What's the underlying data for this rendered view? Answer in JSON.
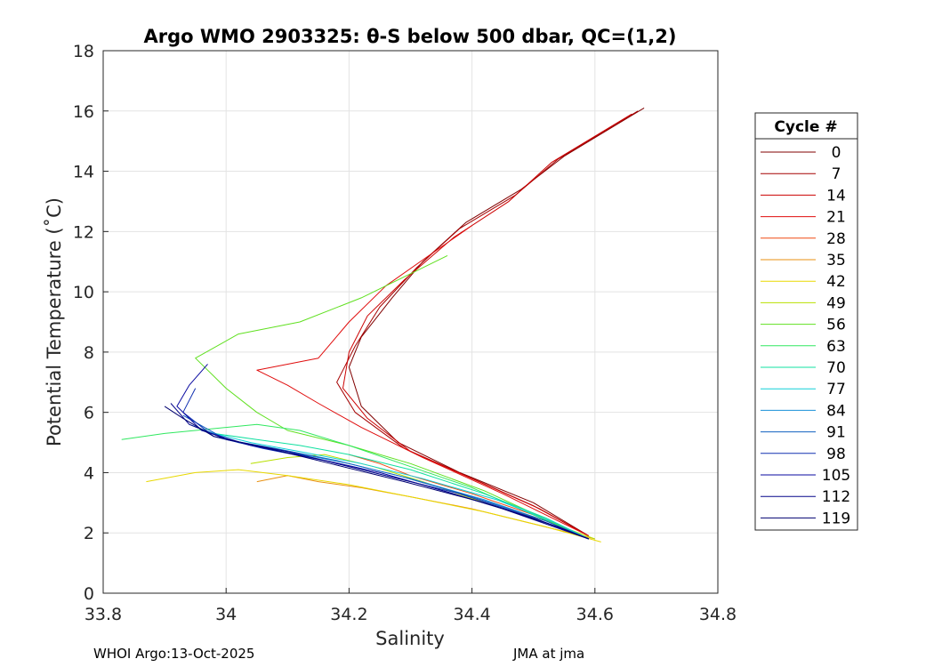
{
  "chart_data": {
    "type": "line",
    "title": "Argo WMO 2903325: θ-S below 500 dbar,  QC=(1,2)",
    "xlabel": "Salinity",
    "ylabel": "Potential Temperature (˚C)",
    "xlim": [
      33.8,
      34.8
    ],
    "ylim": [
      0,
      18
    ],
    "xticks": [
      "33.8",
      "34",
      "34.2",
      "34.4",
      "34.6",
      "34.8"
    ],
    "yticks": [
      "0",
      "2",
      "4",
      "6",
      "8",
      "10",
      "12",
      "14",
      "16",
      "18"
    ],
    "grid": true,
    "legend_title": "Cycle #",
    "legend_position": "right",
    "series": [
      {
        "name": "0",
        "color": "#800000",
        "points": [
          [
            34.68,
            16.1
          ],
          [
            34.55,
            14.5
          ],
          [
            34.48,
            13.4
          ],
          [
            34.39,
            12.3
          ],
          [
            34.32,
            11.0
          ],
          [
            34.27,
            9.8
          ],
          [
            34.22,
            8.5
          ],
          [
            34.2,
            7.5
          ],
          [
            34.22,
            6.2
          ],
          [
            34.28,
            5.0
          ],
          [
            34.38,
            4.0
          ],
          [
            34.5,
            3.0
          ],
          [
            34.59,
            1.9
          ]
        ]
      },
      {
        "name": "7",
        "color": "#a50000",
        "points": [
          [
            34.67,
            16.0
          ],
          [
            34.54,
            14.4
          ],
          [
            34.47,
            13.2
          ],
          [
            34.38,
            12.1
          ],
          [
            34.31,
            10.8
          ],
          [
            34.25,
            9.5
          ],
          [
            34.21,
            8.2
          ],
          [
            34.18,
            7.0
          ],
          [
            34.21,
            6.0
          ],
          [
            34.29,
            4.8
          ],
          [
            34.39,
            3.9
          ],
          [
            34.5,
            2.9
          ],
          [
            34.59,
            1.9
          ]
        ]
      },
      {
        "name": "14",
        "color": "#cc0000",
        "points": [
          [
            34.66,
            15.9
          ],
          [
            34.53,
            14.3
          ],
          [
            34.46,
            13.0
          ],
          [
            34.37,
            11.8
          ],
          [
            34.29,
            10.4
          ],
          [
            34.23,
            9.2
          ],
          [
            34.2,
            8.0
          ],
          [
            34.19,
            6.8
          ],
          [
            34.23,
            5.8
          ],
          [
            34.3,
            4.7
          ],
          [
            34.4,
            3.8
          ],
          [
            34.51,
            2.8
          ],
          [
            34.59,
            1.9
          ]
        ]
      },
      {
        "name": "21",
        "color": "#e00d0d",
        "points": [
          [
            34.4,
            12.2
          ],
          [
            34.33,
            11.2
          ],
          [
            34.26,
            10.2
          ],
          [
            34.2,
            9.0
          ],
          [
            34.15,
            7.8
          ],
          [
            34.05,
            7.4
          ],
          [
            34.1,
            6.9
          ],
          [
            34.15,
            6.3
          ],
          [
            34.22,
            5.5
          ],
          [
            34.32,
            4.5
          ],
          [
            34.45,
            3.3
          ],
          [
            34.59,
            1.9
          ]
        ]
      },
      {
        "name": "28",
        "color": "#f04a12",
        "points": [
          [
            34.2,
            4.6
          ],
          [
            34.25,
            4.3
          ],
          [
            34.3,
            3.9
          ],
          [
            34.4,
            3.3
          ],
          [
            34.5,
            2.6
          ],
          [
            34.58,
            1.9
          ]
        ]
      },
      {
        "name": "35",
        "color": "#e89010",
        "points": [
          [
            34.05,
            3.7
          ],
          [
            34.1,
            3.9
          ],
          [
            34.15,
            3.7
          ],
          [
            34.22,
            3.5
          ],
          [
            34.3,
            3.2
          ],
          [
            34.4,
            2.8
          ],
          [
            34.5,
            2.3
          ],
          [
            34.6,
            1.8
          ]
        ]
      },
      {
        "name": "42",
        "color": "#e8d800",
        "points": [
          [
            33.87,
            3.7
          ],
          [
            33.95,
            4.0
          ],
          [
            34.02,
            4.1
          ],
          [
            34.1,
            3.9
          ],
          [
            34.2,
            3.6
          ],
          [
            34.3,
            3.2
          ],
          [
            34.42,
            2.7
          ],
          [
            34.52,
            2.2
          ],
          [
            34.61,
            1.7
          ]
        ]
      },
      {
        "name": "49",
        "color": "#b8e000",
        "points": [
          [
            34.04,
            4.3
          ],
          [
            34.1,
            4.5
          ],
          [
            34.16,
            4.6
          ],
          [
            34.24,
            4.2
          ],
          [
            34.32,
            3.7
          ],
          [
            34.42,
            3.0
          ],
          [
            34.52,
            2.4
          ],
          [
            34.6,
            1.8
          ]
        ]
      },
      {
        "name": "56",
        "color": "#60e020",
        "points": [
          [
            34.36,
            11.2
          ],
          [
            34.3,
            10.6
          ],
          [
            34.22,
            9.8
          ],
          [
            34.12,
            9.0
          ],
          [
            34.02,
            8.6
          ],
          [
            33.95,
            7.8
          ],
          [
            34.0,
            6.8
          ],
          [
            34.05,
            6.0
          ],
          [
            34.1,
            5.4
          ],
          [
            34.2,
            4.9
          ],
          [
            34.3,
            4.3
          ],
          [
            34.42,
            3.4
          ],
          [
            34.59,
            1.8
          ]
        ]
      },
      {
        "name": "63",
        "color": "#30e860",
        "points": [
          [
            33.83,
            5.1
          ],
          [
            33.9,
            5.3
          ],
          [
            33.95,
            5.4
          ],
          [
            34.05,
            5.6
          ],
          [
            34.12,
            5.4
          ],
          [
            34.2,
            4.9
          ],
          [
            34.3,
            4.2
          ],
          [
            34.4,
            3.5
          ],
          [
            34.5,
            2.6
          ],
          [
            34.59,
            1.8
          ]
        ]
      },
      {
        "name": "70",
        "color": "#10e0a0",
        "points": [
          [
            33.98,
            5.3
          ],
          [
            34.05,
            5.1
          ],
          [
            34.12,
            4.9
          ],
          [
            34.2,
            4.6
          ],
          [
            34.3,
            4.1
          ],
          [
            34.42,
            3.3
          ],
          [
            34.52,
            2.5
          ],
          [
            34.59,
            1.8
          ]
        ]
      },
      {
        "name": "77",
        "color": "#10d0d8",
        "points": [
          [
            33.96,
            5.4
          ],
          [
            34.04,
            5.0
          ],
          [
            34.12,
            4.7
          ],
          [
            34.22,
            4.3
          ],
          [
            34.32,
            3.8
          ],
          [
            34.44,
            3.1
          ],
          [
            34.54,
            2.3
          ],
          [
            34.59,
            1.8
          ]
        ]
      },
      {
        "name": "84",
        "color": "#1890d8",
        "points": [
          [
            33.94,
            5.6
          ],
          [
            34.02,
            5.0
          ],
          [
            34.1,
            4.7
          ],
          [
            34.2,
            4.3
          ],
          [
            34.3,
            3.8
          ],
          [
            34.42,
            3.1
          ],
          [
            34.52,
            2.4
          ],
          [
            34.59,
            1.8
          ]
        ]
      },
      {
        "name": "91",
        "color": "#1060c0",
        "points": [
          [
            33.93,
            5.9
          ],
          [
            34.0,
            5.1
          ],
          [
            34.08,
            4.8
          ],
          [
            34.18,
            4.4
          ],
          [
            34.28,
            3.9
          ],
          [
            34.4,
            3.2
          ],
          [
            34.52,
            2.4
          ],
          [
            34.59,
            1.8
          ]
        ]
      },
      {
        "name": "98",
        "color": "#1030b0",
        "points": [
          [
            33.95,
            6.8
          ],
          [
            33.93,
            6.0
          ],
          [
            33.98,
            5.2
          ],
          [
            34.06,
            4.8
          ],
          [
            34.16,
            4.4
          ],
          [
            34.26,
            3.9
          ],
          [
            34.38,
            3.3
          ],
          [
            34.5,
            2.5
          ],
          [
            34.59,
            1.8
          ]
        ]
      },
      {
        "name": "105",
        "color": "#0a0aa0",
        "points": [
          [
            33.97,
            7.6
          ],
          [
            33.94,
            6.9
          ],
          [
            33.92,
            6.2
          ],
          [
            33.96,
            5.4
          ],
          [
            34.04,
            4.9
          ],
          [
            34.14,
            4.5
          ],
          [
            34.25,
            4.0
          ],
          [
            34.37,
            3.3
          ],
          [
            34.5,
            2.5
          ],
          [
            34.59,
            1.8
          ]
        ]
      },
      {
        "name": "112",
        "color": "#06068a",
        "points": [
          [
            33.91,
            6.3
          ],
          [
            33.94,
            5.6
          ],
          [
            34.0,
            5.1
          ],
          [
            34.1,
            4.7
          ],
          [
            34.2,
            4.2
          ],
          [
            34.32,
            3.6
          ],
          [
            34.45,
            2.8
          ],
          [
            34.59,
            1.8
          ]
        ]
      },
      {
        "name": "119",
        "color": "#000070",
        "points": [
          [
            33.9,
            6.2
          ],
          [
            33.93,
            5.8
          ],
          [
            33.98,
            5.2
          ],
          [
            34.07,
            4.8
          ],
          [
            34.17,
            4.3
          ],
          [
            34.29,
            3.7
          ],
          [
            34.42,
            3.0
          ],
          [
            34.54,
            2.2
          ],
          [
            34.59,
            1.8
          ]
        ]
      }
    ]
  },
  "footer": {
    "left": "WHOI Argo:13-Oct-2025",
    "right": "JMA at jma"
  }
}
